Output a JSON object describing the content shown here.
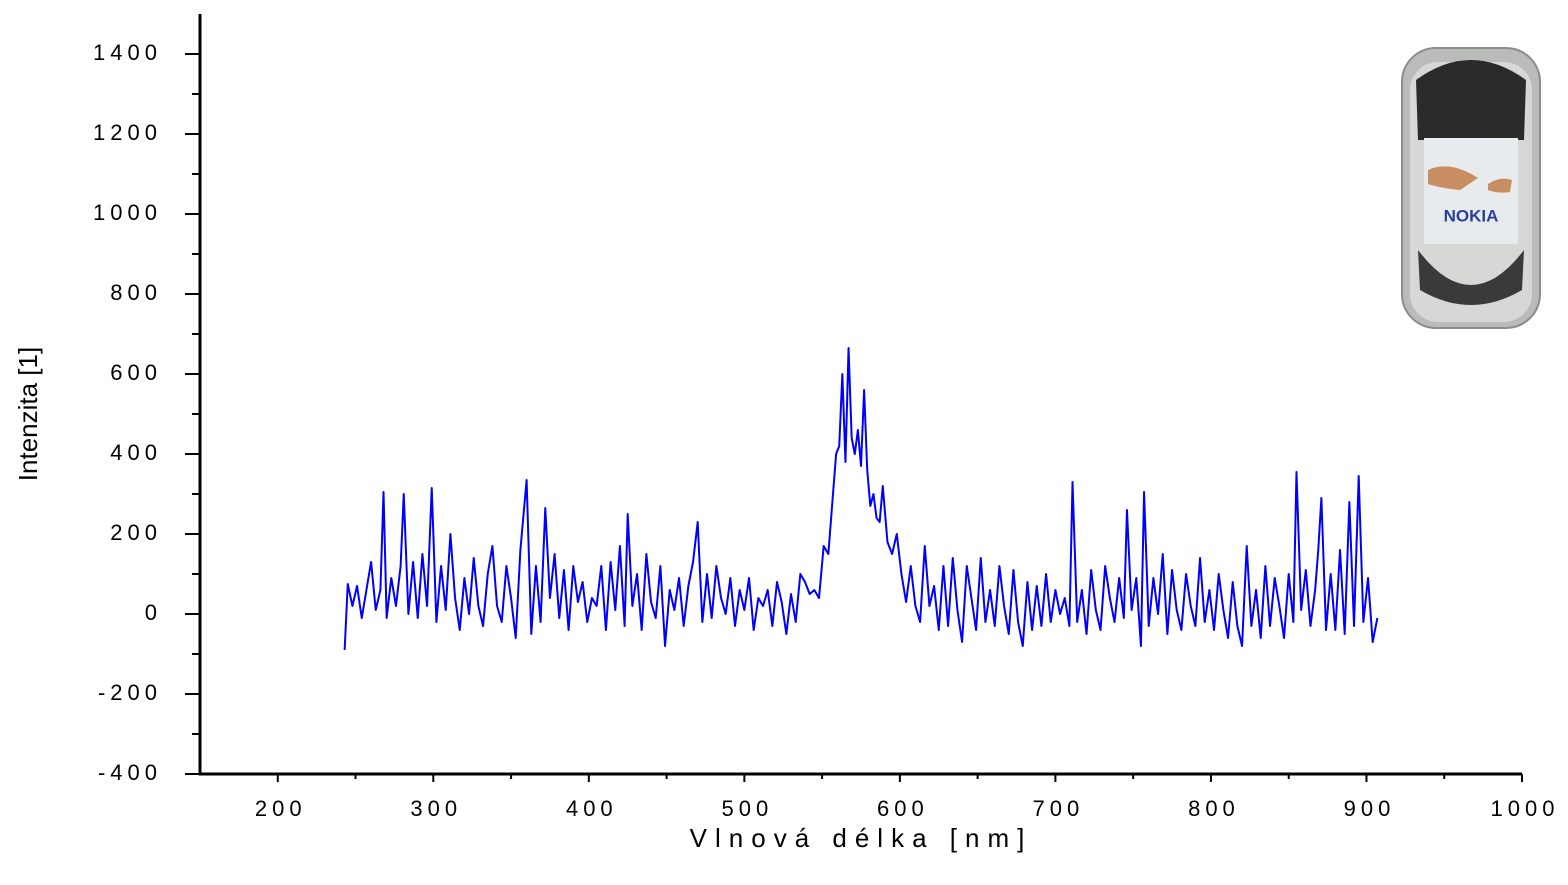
{
  "chart_data": {
    "type": "line",
    "x_label": "Vlnová délka [nm]",
    "y_label": "Intenzita [1]",
    "xlim": [
      150,
      1000
    ],
    "ylim": [
      -400,
      1500
    ],
    "xticks": [
      200,
      300,
      400,
      500,
      600,
      700,
      800,
      900,
      1000
    ],
    "yticks": [
      -400,
      -200,
      0,
      200,
      400,
      600,
      800,
      1000,
      1200,
      1400
    ],
    "grid": false,
    "series": [
      {
        "color": "#0000ff",
        "x": [
          243,
          245,
          248,
          251,
          254,
          257,
          260,
          263,
          266,
          268,
          270,
          273,
          276,
          279,
          281,
          284,
          287,
          290,
          293,
          296,
          299,
          302,
          305,
          308,
          311,
          314,
          317,
          320,
          323,
          326,
          329,
          332,
          335,
          338,
          341,
          344,
          347,
          350,
          353,
          356,
          360,
          363,
          366,
          369,
          372,
          375,
          378,
          381,
          384,
          387,
          390,
          393,
          396,
          399,
          402,
          405,
          408,
          411,
          414,
          417,
          420,
          423,
          425,
          428,
          431,
          434,
          437,
          440,
          443,
          446,
          449,
          452,
          455,
          458,
          461,
          464,
          467,
          470,
          473,
          476,
          479,
          482,
          485,
          488,
          491,
          494,
          497,
          500,
          503,
          506,
          509,
          512,
          515,
          518,
          521,
          524,
          527,
          530,
          533,
          536,
          539,
          542,
          545,
          548,
          551,
          554,
          557,
          559,
          561,
          563,
          565,
          567,
          569,
          571,
          573,
          575,
          577,
          579,
          581,
          583,
          585,
          587,
          589,
          592,
          595,
          598,
          601,
          604,
          607,
          610,
          613,
          616,
          619,
          622,
          625,
          628,
          631,
          634,
          637,
          640,
          643,
          646,
          649,
          652,
          655,
          658,
          661,
          664,
          667,
          670,
          673,
          676,
          679,
          682,
          685,
          688,
          691,
          694,
          697,
          700,
          703,
          706,
          709,
          711,
          714,
          717,
          720,
          723,
          726,
          729,
          732,
          735,
          738,
          741,
          744,
          746,
          749,
          752,
          755,
          757,
          760,
          763,
          766,
          769,
          772,
          775,
          778,
          781,
          784,
          787,
          790,
          793,
          796,
          799,
          802,
          805,
          808,
          811,
          814,
          817,
          820,
          823,
          826,
          829,
          832,
          835,
          838,
          841,
          844,
          847,
          850,
          853,
          855,
          858,
          861,
          864,
          867,
          869,
          871,
          874,
          877,
          880,
          883,
          886,
          889,
          892,
          895,
          898,
          901,
          904,
          907
        ],
        "values": [
          -90,
          75,
          20,
          70,
          -10,
          60,
          130,
          10,
          60,
          305,
          -10,
          90,
          20,
          120,
          300,
          0,
          130,
          -10,
          150,
          20,
          315,
          -20,
          120,
          10,
          200,
          40,
          -40,
          90,
          0,
          140,
          20,
          -30,
          100,
          170,
          20,
          -20,
          120,
          40,
          -60,
          160,
          335,
          -50,
          120,
          -20,
          265,
          40,
          150,
          -10,
          110,
          -40,
          120,
          30,
          80,
          -20,
          40,
          20,
          120,
          -40,
          130,
          10,
          170,
          -30,
          250,
          20,
          100,
          -40,
          150,
          30,
          -10,
          120,
          -80,
          60,
          10,
          90,
          -30,
          70,
          130,
          230,
          -20,
          100,
          -10,
          120,
          40,
          0,
          90,
          -30,
          60,
          10,
          90,
          -40,
          40,
          20,
          60,
          -30,
          80,
          30,
          -50,
          50,
          -20,
          100,
          80,
          50,
          60,
          40,
          170,
          150,
          300,
          400,
          420,
          600,
          380,
          665,
          440,
          400,
          460,
          370,
          560,
          360,
          270,
          300,
          240,
          230,
          320,
          180,
          150,
          200,
          100,
          30,
          120,
          20,
          -20,
          170,
          20,
          70,
          -40,
          120,
          -30,
          140,
          10,
          -70,
          120,
          40,
          -40,
          140,
          -20,
          60,
          -30,
          120,
          20,
          -50,
          110,
          -20,
          -80,
          80,
          -40,
          70,
          -30,
          100,
          -20,
          60,
          0,
          40,
          -30,
          330,
          -20,
          60,
          -50,
          110,
          10,
          -40,
          120,
          40,
          -20,
          90,
          -10,
          260,
          10,
          90,
          -80,
          305,
          -30,
          90,
          0,
          150,
          -50,
          110,
          10,
          -40,
          100,
          20,
          -30,
          140,
          -20,
          60,
          -40,
          100,
          10,
          -60,
          80,
          -30,
          -80,
          170,
          -30,
          60,
          -60,
          120,
          -30,
          90,
          20,
          -60,
          100,
          -20,
          355,
          10,
          110,
          -30,
          60,
          160,
          290,
          -40,
          100,
          -40,
          160,
          -50,
          280,
          -30,
          345,
          -20,
          90,
          -70,
          -10
        ]
      }
    ]
  },
  "inset": {
    "brand": "NOKIA"
  }
}
